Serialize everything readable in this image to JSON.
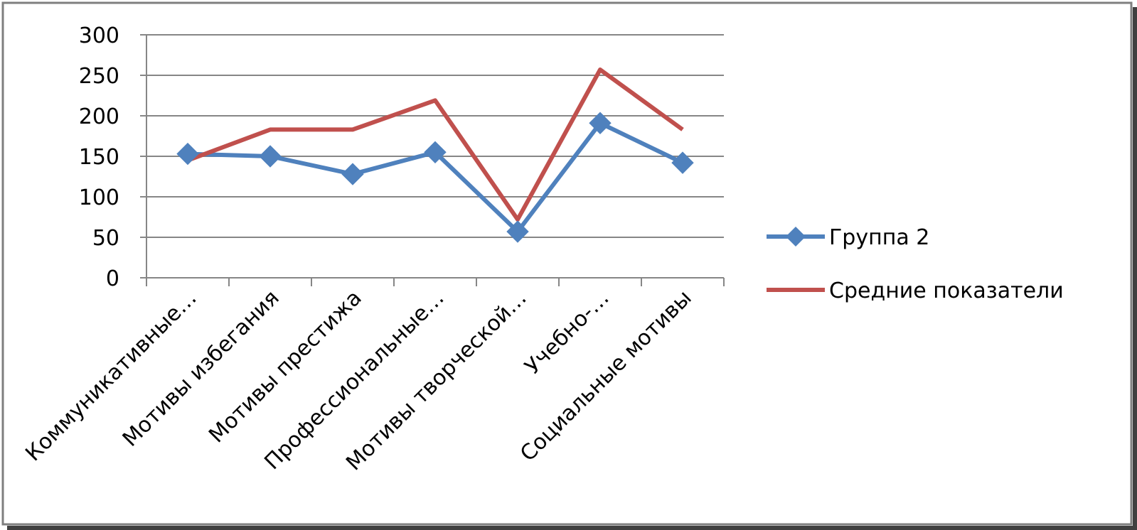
{
  "chart_data": {
    "type": "line",
    "title": "",
    "xlabel": "",
    "ylabel": "",
    "ylim": [
      0,
      300
    ],
    "yticks": [
      0,
      50,
      100,
      150,
      200,
      250,
      300
    ],
    "grid": "horizontal",
    "legend": "right",
    "categories": [
      "Коммуникативные…",
      "Мотивы избегания",
      "Мотивы престижа",
      "Профессиональные…",
      "Мотивы творческой…",
      "Учебно-…",
      "Социальные мотивы"
    ],
    "series": [
      {
        "name": "Группа 2",
        "color": "#4F81BD",
        "marker": "diamond",
        "values": [
          153,
          150,
          128,
          155,
          57,
          191,
          142
        ]
      },
      {
        "name": "Средние показатели",
        "color": "#C0504D",
        "marker": "none",
        "values": [
          145,
          183,
          183,
          219,
          72,
          257,
          183
        ]
      }
    ]
  }
}
